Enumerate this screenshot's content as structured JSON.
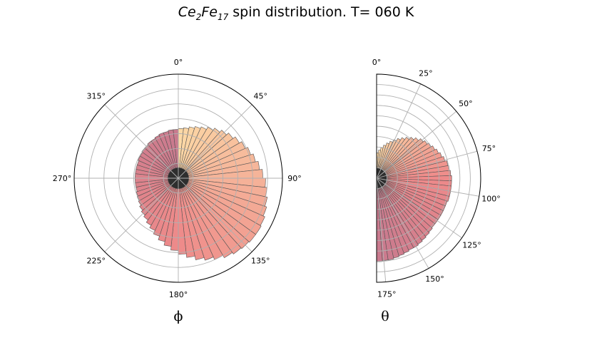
{
  "title": {
    "prefix": "Ce",
    "sub1": "2",
    "mid": "Fe",
    "sub2": "17",
    "suffix": " spin distribution. T= 060 K"
  },
  "colors": {
    "low": "#fcd9a6",
    "mid": "#ee8a8a",
    "high": "#c97a8e",
    "edge": "#555555",
    "center": "#2e2e2e",
    "grid": "#b0b0b0"
  },
  "chart_data": [
    {
      "type": "polar-bar",
      "name": "phi-histogram",
      "xlabel": "ϕ",
      "theta_ticks": [
        "0°",
        "45°",
        "90°",
        "135°",
        "180°",
        "225°",
        "270°",
        "315°"
      ],
      "theta_direction": "clockwise",
      "theta_zero": "top",
      "theta_range_deg": [
        0,
        360
      ],
      "r_max": 1.0,
      "r_grid": 6,
      "bin_width_deg": 6,
      "bin_start_deg": [
        0,
        6,
        12,
        18,
        24,
        30,
        36,
        42,
        48,
        54,
        60,
        66,
        72,
        78,
        84,
        90,
        96,
        102,
        108,
        114,
        120,
        126,
        132,
        138,
        144,
        150,
        156,
        162,
        168,
        174,
        180,
        186,
        192,
        198,
        204,
        210,
        216,
        222,
        228,
        234,
        240,
        246,
        252,
        258,
        264,
        270,
        276,
        282,
        288,
        294,
        300,
        306,
        312,
        318,
        324,
        330,
        336,
        342,
        348,
        354
      ],
      "values": [
        0.42,
        0.43,
        0.45,
        0.47,
        0.49,
        0.52,
        0.55,
        0.58,
        0.61,
        0.64,
        0.67,
        0.7,
        0.73,
        0.76,
        0.79,
        0.82,
        0.84,
        0.86,
        0.88,
        0.9,
        0.91,
        0.91,
        0.9,
        0.89,
        0.87,
        0.84,
        0.81,
        0.78,
        0.74,
        0.7,
        0.66,
        0.62,
        0.58,
        0.54,
        0.5,
        0.47,
        0.44,
        0.42,
        0.4,
        0.38,
        0.37,
        0.36,
        0.35,
        0.35,
        0.35,
        0.35,
        0.35,
        0.35,
        0.35,
        0.36,
        0.36,
        0.37,
        0.37,
        0.38,
        0.38,
        0.39,
        0.4,
        0.4,
        0.41,
        0.41
      ]
    },
    {
      "type": "polar-bar",
      "name": "theta-histogram",
      "xlabel": "θ",
      "theta_ticks": [
        "0°",
        "25°",
        "50°",
        "75°",
        "100°",
        "125°",
        "150°",
        "175°"
      ],
      "theta_direction": "clockwise",
      "theta_zero": "top",
      "theta_range_deg": [
        0,
        180
      ],
      "r_max": 1.0,
      "r_grid": 9,
      "bin_width_deg": 4,
      "bin_start_deg": [
        0,
        4,
        8,
        12,
        16,
        20,
        24,
        28,
        32,
        36,
        40,
        44,
        48,
        52,
        56,
        60,
        64,
        68,
        72,
        76,
        80,
        84,
        88,
        92,
        96,
        100,
        104,
        108,
        112,
        116,
        120,
        124,
        128,
        132,
        136,
        140,
        144,
        148,
        152,
        156,
        160,
        164,
        168,
        172,
        176
      ],
      "values": [
        0.16,
        0.19,
        0.22,
        0.25,
        0.28,
        0.31,
        0.34,
        0.37,
        0.4,
        0.43,
        0.46,
        0.49,
        0.52,
        0.54,
        0.56,
        0.58,
        0.6,
        0.62,
        0.64,
        0.66,
        0.67,
        0.68,
        0.69,
        0.69,
        0.69,
        0.69,
        0.69,
        0.68,
        0.68,
        0.68,
        0.68,
        0.68,
        0.68,
        0.69,
        0.7,
        0.71,
        0.72,
        0.73,
        0.73,
        0.74,
        0.75,
        0.76,
        0.77,
        0.77,
        0.78
      ]
    }
  ]
}
